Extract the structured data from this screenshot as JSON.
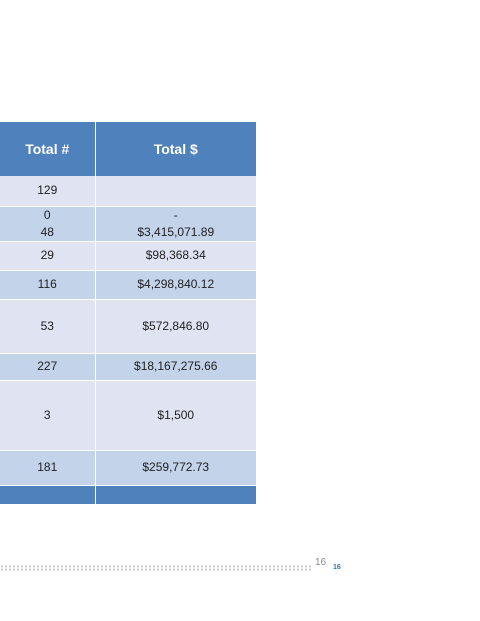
{
  "table": {
    "headers": [
      "Total #",
      "Total $"
    ],
    "rows": [
      {
        "count": "129",
        "amount": ""
      },
      {
        "count_lines": [
          "0",
          "48"
        ],
        "amount_lines": [
          "-",
          "$3,415,071.89"
        ]
      },
      {
        "count": "29",
        "amount": "$98,368.34"
      },
      {
        "count": "116",
        "amount": "$4,298,840.12"
      },
      {
        "count": "53",
        "amount": "$572,846.80"
      },
      {
        "count": "227",
        "amount": "$18,167,275.66"
      },
      {
        "count": "3",
        "amount": "$1,500"
      },
      {
        "count": "181",
        "amount": "$259,772.73"
      }
    ]
  },
  "footer": {
    "page_number": "16",
    "page_number_small": "16"
  }
}
